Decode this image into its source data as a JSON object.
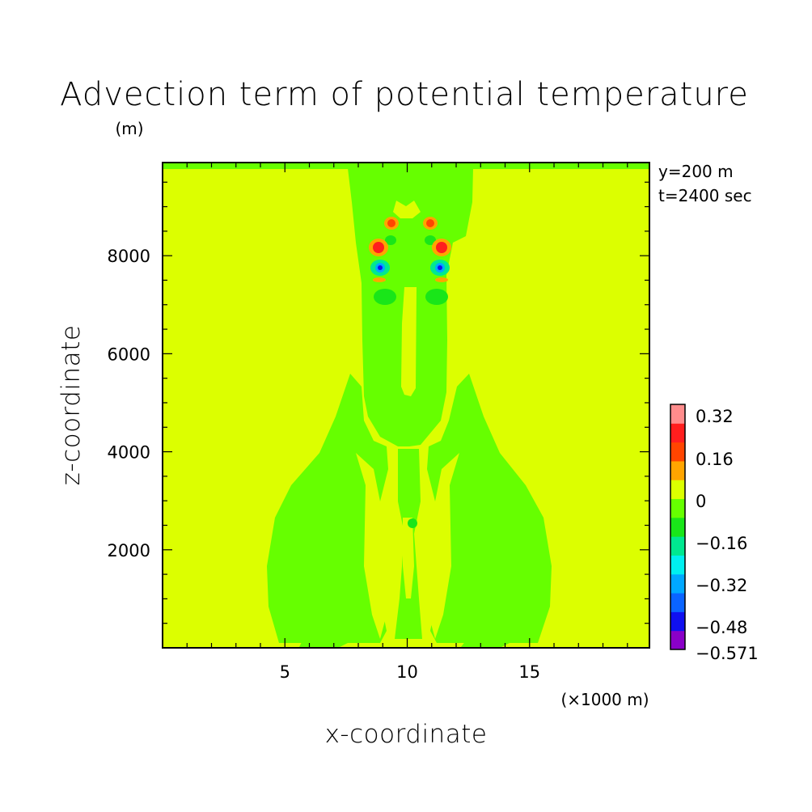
{
  "chart_data": {
    "type": "contour",
    "title": "Advection term of potential temperature",
    "ylabel": "z-coordinate",
    "xlabel": "x-coordinate",
    "y_unit": "(m)",
    "x_unit": "(×1000 m)",
    "annotations": [
      "y=200 m",
      "t=2400 sec"
    ],
    "xlim": [
      0,
      19.9
    ],
    "ylim": [
      0,
      9900
    ],
    "x_ticks": [
      5,
      10,
      15
    ],
    "y_ticks": [
      2000,
      4000,
      6000,
      8000
    ],
    "colorbar": {
      "levels": [
        -0.571,
        -0.48,
        -0.4,
        -0.32,
        -0.24,
        -0.16,
        -0.08,
        0,
        0.08,
        0.16,
        0.24,
        0.32,
        0.34
      ],
      "colors": [
        "#8a00c8",
        "#1010f0",
        "#0a64ff",
        "#00a8ff",
        "#00f0f0",
        "#00e890",
        "#19e619",
        "#66ff00",
        "#dcff00",
        "#ffa500",
        "#ff4500",
        "#ff1e1e",
        "#ff8c8c"
      ],
      "tick_labels": [
        "0.32",
        "0.16",
        "0",
        "−0.16",
        "−0.32",
        "−0.48",
        "−0.571"
      ]
    },
    "colors": {
      "background_field": "#dcff00",
      "negative_weak": "#66ff00",
      "negative_mid": "#19e619",
      "negative_strong": "#00e890",
      "positive_mid": "#ffa500",
      "positive_strong": "#ff4500",
      "extreme_neg": "#1010f0"
    }
  }
}
